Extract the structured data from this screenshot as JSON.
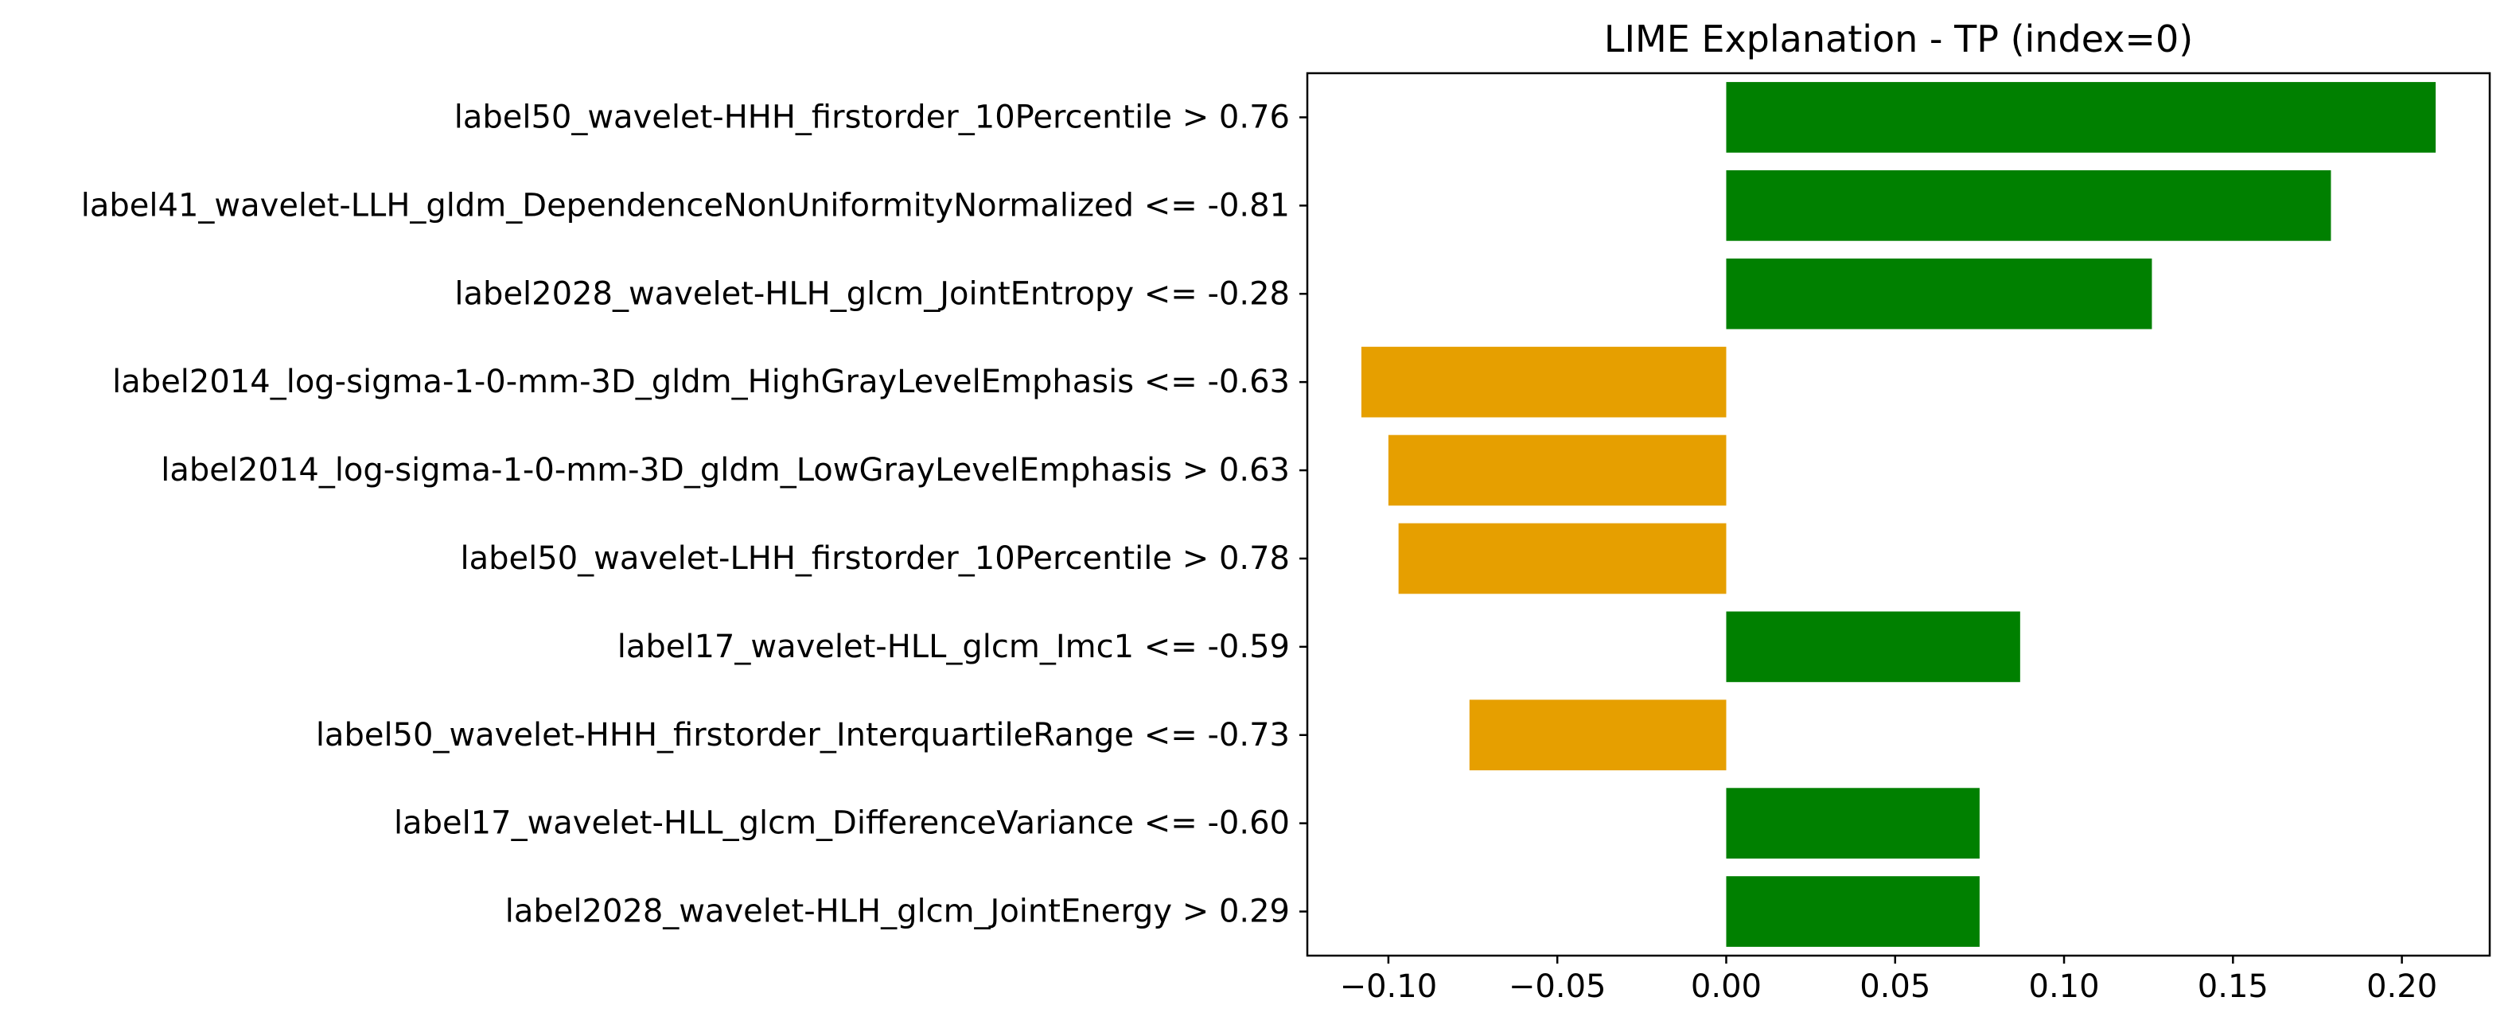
{
  "chart_data": {
    "type": "bar",
    "orientation": "horizontal",
    "title": "LIME Explanation - TP (index=0)",
    "xlabel": "",
    "ylabel": "",
    "categories": [
      "label50_wavelet-HHH_firstorder_10Percentile > 0.76",
      "label41_wavelet-LLH_gldm_DependenceNonUniformityNormalized <= -0.81",
      "label2028_wavelet-HLH_glcm_JointEntropy <= -0.28",
      "label2014_log-sigma-1-0-mm-3D_gldm_HighGrayLevelEmphasis <= -0.63",
      "label2014_log-sigma-1-0-mm-3D_gldm_LowGrayLevelEmphasis > 0.63",
      "label50_wavelet-LHH_firstorder_10Percentile > 0.78",
      "label17_wavelet-HLL_glcm_Imc1 <= -0.59",
      "label50_wavelet-HHH_firstorder_InterquartileRange <= -0.73",
      "label17_wavelet-HLL_glcm_DifferenceVariance <= -0.60",
      "label2028_wavelet-HLH_glcm_JointEnergy > 0.29"
    ],
    "values": [
      0.21,
      0.179,
      0.126,
      -0.108,
      -0.1,
      -0.097,
      0.087,
      -0.076,
      0.075,
      0.075
    ],
    "xlim": [
      -0.124,
      0.226
    ],
    "xticks": [
      -0.1,
      -0.05,
      0.0,
      0.05,
      0.1,
      0.15,
      0.2
    ],
    "xtick_labels": [
      "−0.10",
      "−0.05",
      "0.00",
      "0.05",
      "0.10",
      "0.15",
      "0.20"
    ],
    "colors": {
      "positive": "#008000",
      "negative": "#e69f00"
    },
    "grid": false,
    "legend": "none"
  }
}
